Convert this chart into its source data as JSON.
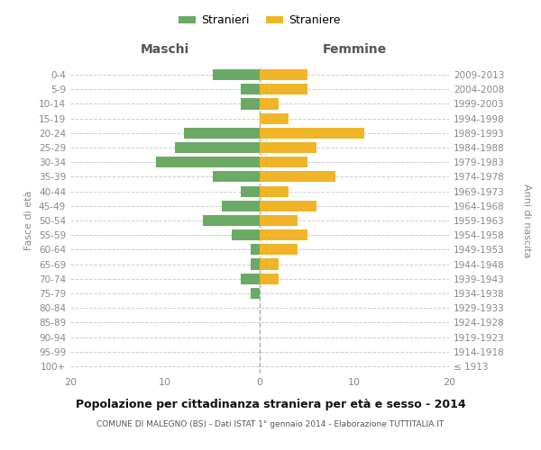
{
  "age_groups": [
    "100+",
    "95-99",
    "90-94",
    "85-89",
    "80-84",
    "75-79",
    "70-74",
    "65-69",
    "60-64",
    "55-59",
    "50-54",
    "45-49",
    "40-44",
    "35-39",
    "30-34",
    "25-29",
    "20-24",
    "15-19",
    "10-14",
    "5-9",
    "0-4"
  ],
  "birth_years": [
    "≤ 1913",
    "1914-1918",
    "1919-1923",
    "1924-1928",
    "1929-1933",
    "1934-1938",
    "1939-1943",
    "1944-1948",
    "1949-1953",
    "1954-1958",
    "1959-1963",
    "1964-1968",
    "1969-1973",
    "1974-1978",
    "1979-1983",
    "1984-1988",
    "1989-1993",
    "1994-1998",
    "1999-2003",
    "2004-2008",
    "2009-2013"
  ],
  "maschi": [
    0,
    0,
    0,
    0,
    0,
    1,
    2,
    1,
    1,
    3,
    6,
    4,
    2,
    5,
    11,
    9,
    8,
    0,
    2,
    2,
    5
  ],
  "femmine": [
    0,
    0,
    0,
    0,
    0,
    0,
    2,
    2,
    4,
    5,
    4,
    6,
    3,
    8,
    5,
    6,
    11,
    3,
    2,
    5,
    5
  ],
  "maschi_color": "#6aaa64",
  "femmine_color": "#f0b429",
  "background_color": "#ffffff",
  "grid_color": "#cccccc",
  "title": "Popolazione per cittadinanza straniera per età e sesso - 2014",
  "subtitle": "COMUNE DI MALEGNO (BS) - Dati ISTAT 1° gennaio 2014 - Elaborazione TUTTITALIA.IT",
  "xlabel_left": "Maschi",
  "xlabel_right": "Femmine",
  "ylabel_left": "Fasce di età",
  "ylabel_right": "Anni di nascita",
  "legend_maschi": "Stranieri",
  "legend_femmine": "Straniere",
  "xlim": 20,
  "bar_height": 0.75
}
